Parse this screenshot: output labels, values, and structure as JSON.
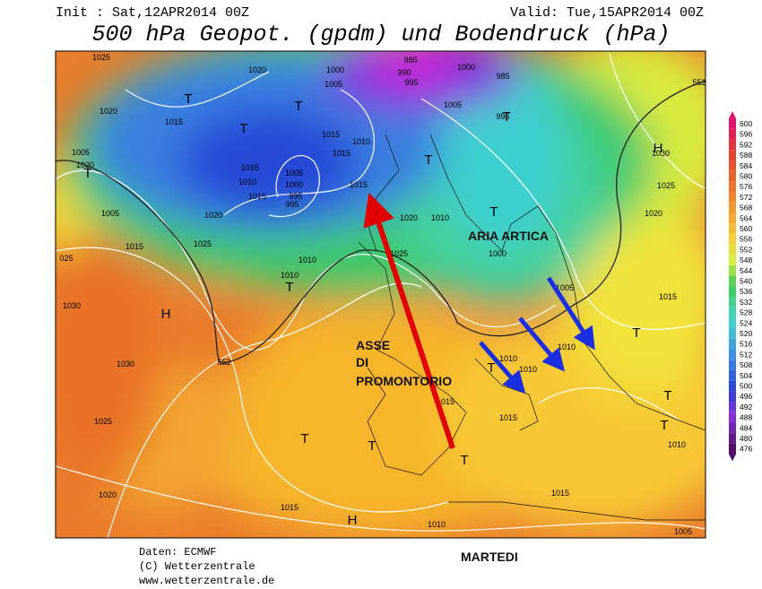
{
  "header": {
    "init": "Init : Sat,12APR2014 00Z",
    "valid": "Valid: Tue,15APR2014 00Z",
    "title": "500 hPa Geopot. (gpdm) und Bodendruck (hPa)"
  },
  "map": {
    "isobar_labels": [
      "1025",
      "1020",
      "1000",
      "985",
      "990",
      "995",
      "1000",
      "985",
      "1005",
      "1020",
      "1015",
      "1005",
      "995",
      "1015",
      "1010",
      "1015",
      "1005",
      "1020",
      "1015",
      "1010",
      "1005",
      "1000",
      "995",
      "995",
      "1015",
      "1015",
      "1005",
      "1015",
      "1020",
      "1020",
      "1010",
      "1025",
      "1025",
      "1000",
      "025",
      "1010",
      "1010",
      "1005",
      "1015",
      "1030",
      "1010",
      "1010",
      "1010",
      "1030",
      "1015",
      "1015",
      "1025",
      "1010",
      "1020",
      "1015",
      "1015",
      "1010",
      "1005",
      "1030",
      "1025",
      "1020",
      "552",
      "552"
    ],
    "pressure_centers": [
      "T",
      "T",
      "T",
      "T",
      "T",
      "T",
      "T",
      "T",
      "T",
      "T",
      "T",
      "T",
      "T",
      "T",
      "T",
      "H",
      "H",
      "H"
    ],
    "annotations": {
      "arctic_air": "ARIA ARTICA",
      "ridge_axis": [
        "ASSE",
        "DI",
        "PROMONTORIO"
      ],
      "day": "MARTEDI"
    }
  },
  "colorbar": {
    "ticks": [
      600,
      596,
      592,
      588,
      584,
      580,
      576,
      572,
      568,
      564,
      560,
      556,
      552,
      548,
      544,
      540,
      536,
      532,
      528,
      524,
      520,
      516,
      512,
      508,
      504,
      500,
      496,
      492,
      488,
      484,
      480,
      476
    ]
  },
  "footer": {
    "source": "Daten: ECMWF",
    "copyright": "(C) Wetterzentrale",
    "url": "www.wetterzentrale.de"
  }
}
